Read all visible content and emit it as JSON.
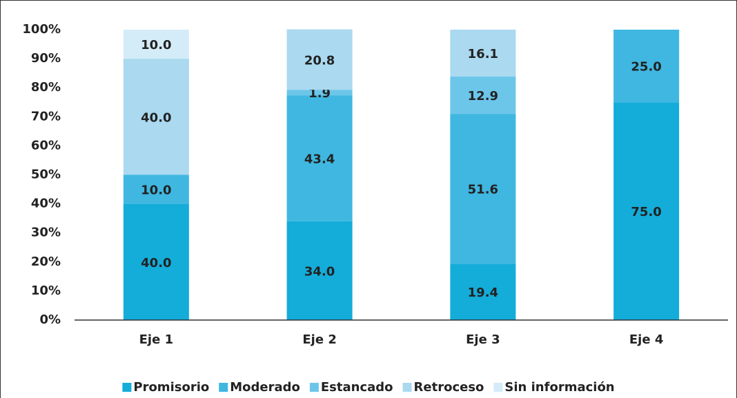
{
  "chart_data": {
    "type": "stacked_bar",
    "categories": [
      "Eje 1",
      "Eje 2",
      "Eje 3",
      "Eje 4"
    ],
    "series": [
      {
        "name": "Promisorio",
        "color": "#14acd9",
        "values": [
          40,
          34,
          19.4,
          75
        ],
        "value_labels": [
          "40.0",
          "34.0",
          "19.4",
          "75.0"
        ]
      },
      {
        "name": "Moderado",
        "color": "#3fb7e1",
        "values": [
          10,
          43.4,
          51.6,
          25
        ],
        "value_labels": [
          "10.0",
          "43.4",
          "51.6",
          "25.0"
        ]
      },
      {
        "name": "Estancado",
        "color": "#6cc6ea",
        "values": [
          null,
          1.9,
          12.9,
          null
        ],
        "value_labels": [
          null,
          "1.9",
          "12.9",
          null
        ]
      },
      {
        "name": "Retroceso",
        "color": "#aad9f0",
        "values": [
          40,
          20.8,
          16.1,
          null
        ],
        "value_labels": [
          "40.0",
          "20.8",
          "16.1",
          null
        ]
      },
      {
        "name": "Sin información",
        "color": "#d4ecf8",
        "values": [
          10,
          null,
          null,
          null
        ],
        "value_labels": [
          "10.0",
          null,
          null,
          null
        ]
      }
    ],
    "ylim": [
      0,
      100
    ],
    "yticks": [
      {
        "value": 0,
        "label": "0%"
      },
      {
        "value": 10,
        "label": "10%"
      },
      {
        "value": 20,
        "label": "20%"
      },
      {
        "value": 30,
        "label": "30%"
      },
      {
        "value": 40,
        "label": "40%"
      },
      {
        "value": 50,
        "label": "50%"
      },
      {
        "value": 60,
        "label": "60%"
      },
      {
        "value": 70,
        "label": "70%"
      },
      {
        "value": 80,
        "label": "80%"
      },
      {
        "value": 90,
        "label": "90%"
      },
      {
        "value": 100,
        "label": "100%"
      }
    ],
    "legend": "bottom"
  }
}
